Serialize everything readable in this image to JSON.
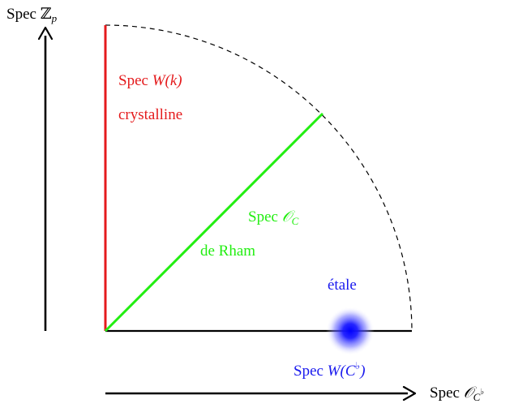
{
  "labels": {
    "spec_zp": {
      "prefix": "Spec ",
      "symbol": "ℤ",
      "subscript": "p"
    },
    "spec_wk": {
      "prefix": "Spec ",
      "symbol": "W",
      "argument": "(k)"
    },
    "crystalline": "crystalline",
    "spec_oc": {
      "prefix": "Spec ",
      "symbol": "𝒪",
      "subscript": "C"
    },
    "de_rham": "de Rham",
    "etale": "étale",
    "spec_wcflat": {
      "prefix": "Spec ",
      "symbol": "W",
      "open": "(C",
      "flat": "♭",
      "close": ")"
    },
    "spec_ocflat": {
      "prefix": "Spec ",
      "symbol": "𝒪",
      "subscript": "C",
      "flat": "♭"
    }
  },
  "colors": {
    "red": "#e41a1c",
    "green": "#22ee11",
    "blue": "#1a1aee",
    "black": "#000000"
  }
}
